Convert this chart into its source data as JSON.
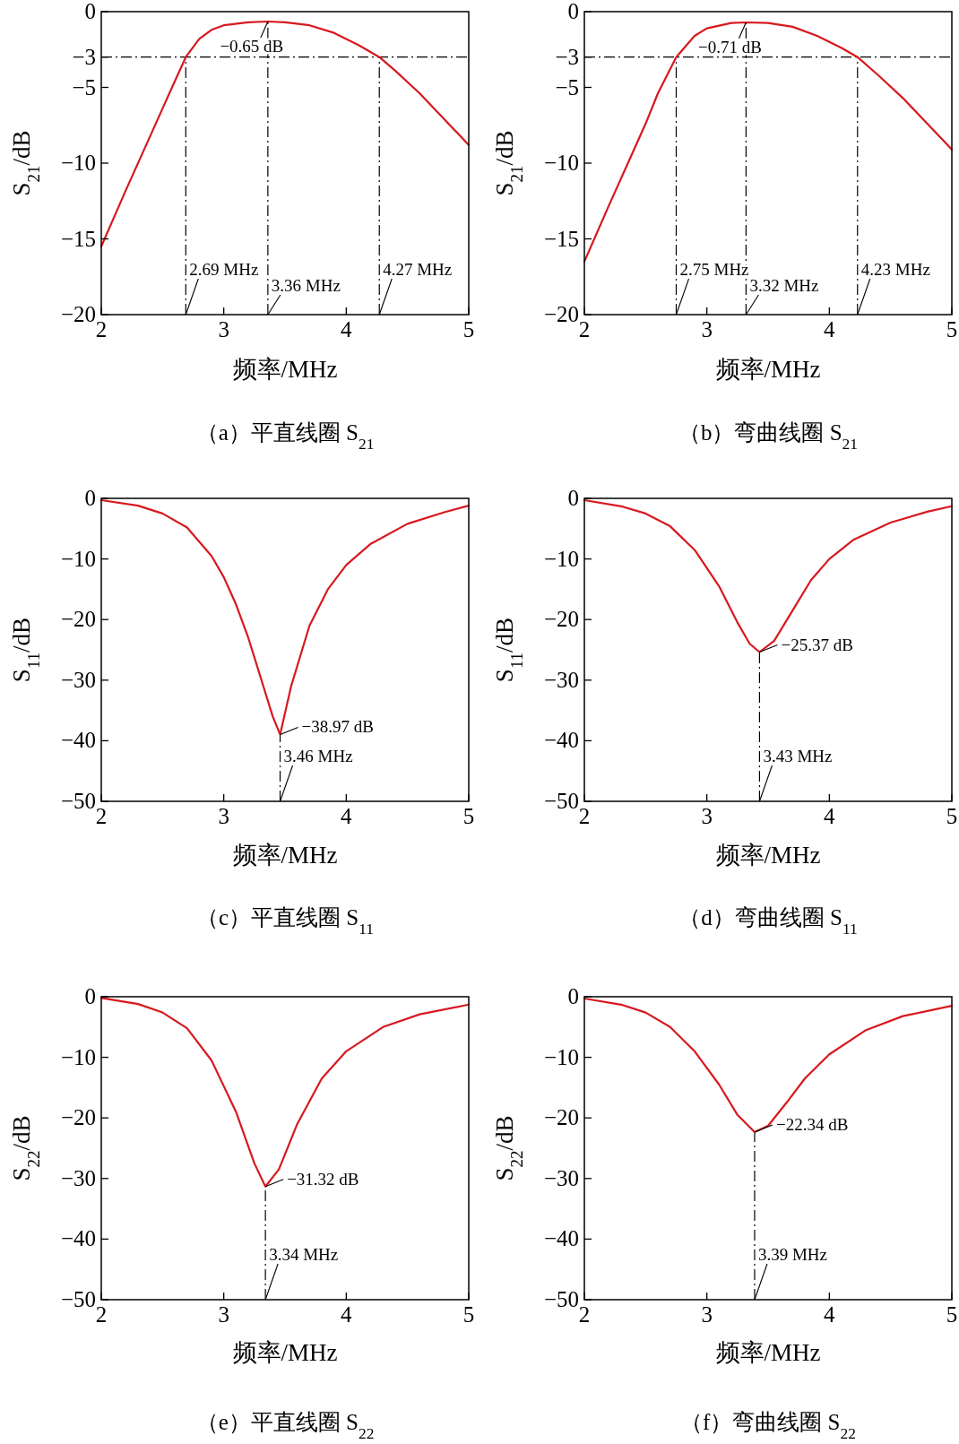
{
  "chart_data": [
    {
      "type": "line",
      "title": "（a）平直线圈 S$_{21}$",
      "xlabel": "频率/MHz",
      "ylabel": "S$_{21}$/dB",
      "xlim": [
        2,
        5
      ],
      "ylim": [
        -20,
        0
      ],
      "xticks": [
        2,
        3,
        4,
        5
      ],
      "yticks": [
        0,
        -3,
        -5,
        -10,
        -15,
        -20
      ],
      "x": [
        2,
        2.2,
        2.4,
        2.5,
        2.6,
        2.69,
        2.8,
        2.9,
        3.0,
        3.2,
        3.36,
        3.5,
        3.7,
        3.9,
        4.1,
        4.27,
        4.4,
        4.6,
        4.8,
        5
      ],
      "series": [
        {
          "color": "#d7191f",
          "values": [
            -15.5,
            -11.8,
            -8.2,
            -6.4,
            -4.6,
            -3.0,
            -1.8,
            -1.2,
            -0.9,
            -0.7,
            -0.65,
            -0.7,
            -0.9,
            -1.4,
            -2.2,
            -3.0,
            -3.9,
            -5.4,
            -7.1,
            -8.8
          ]
        }
      ],
      "ref_lines": [
        {
          "axis": "y",
          "value": -3,
          "line_style": "dashdot"
        },
        {
          "axis": "x",
          "value": 2.69,
          "line_style": "dashdot"
        },
        {
          "axis": "x",
          "value": 3.36,
          "line_style": "dashdot"
        },
        {
          "axis": "x",
          "value": 4.27,
          "line_style": "dashdot"
        }
      ],
      "annotations": [
        {
          "text": "−0.65 dB",
          "x": 3.36,
          "y": -0.65
        },
        {
          "text": "2.69 MHz",
          "x": 2.69,
          "y": -20
        },
        {
          "text": "3.36 MHz",
          "x": 3.36,
          "y": -20
        },
        {
          "text": "4.27 MHz",
          "x": 4.27,
          "y": -20
        }
      ]
    },
    {
      "type": "line",
      "title": "（b）弯曲线圈 S$_{21}$",
      "xlabel": "频率/MHz",
      "ylabel": "S$_{21}$/dB",
      "xlim": [
        2,
        5
      ],
      "ylim": [
        -20,
        0
      ],
      "xticks": [
        2,
        3,
        4,
        5
      ],
      "yticks": [
        0,
        -3,
        -5,
        -10,
        -15,
        -20
      ],
      "x": [
        2,
        2.2,
        2.4,
        2.5,
        2.6,
        2.75,
        2.9,
        3.0,
        3.2,
        3.32,
        3.5,
        3.7,
        3.9,
        4.1,
        4.23,
        4.4,
        4.6,
        4.8,
        5
      ],
      "series": [
        {
          "color": "#d7191f",
          "values": [
            -16.5,
            -12.8,
            -9.2,
            -7.4,
            -5.4,
            -3.0,
            -1.6,
            -1.1,
            -0.75,
            -0.71,
            -0.75,
            -1.0,
            -1.6,
            -2.4,
            -3.0,
            -4.2,
            -5.7,
            -7.4,
            -9.1
          ]
        }
      ],
      "ref_lines": [
        {
          "axis": "y",
          "value": -3,
          "line_style": "dashdot"
        },
        {
          "axis": "x",
          "value": 2.75,
          "line_style": "dashdot"
        },
        {
          "axis": "x",
          "value": 3.32,
          "line_style": "dashdot"
        },
        {
          "axis": "x",
          "value": 4.23,
          "line_style": "dashdot"
        }
      ],
      "annotations": [
        {
          "text": "−0.71 dB",
          "x": 3.32,
          "y": -0.71
        },
        {
          "text": "2.75 MHz",
          "x": 2.75,
          "y": -20
        },
        {
          "text": "3.32 MHz",
          "x": 3.32,
          "y": -20
        },
        {
          "text": "4.23 MHz",
          "x": 4.23,
          "y": -20
        }
      ]
    },
    {
      "type": "line",
      "title": "（c）平直线圈 S$_{11}$",
      "xlabel": "频率/MHz",
      "ylabel": "S$_{11}$/dB",
      "xlim": [
        2,
        5
      ],
      "ylim": [
        -50,
        0
      ],
      "xticks": [
        2,
        3,
        4,
        5
      ],
      "yticks": [
        0,
        -10,
        -20,
        -30,
        -40,
        -50
      ],
      "x": [
        2,
        2.3,
        2.5,
        2.7,
        2.9,
        3.0,
        3.1,
        3.2,
        3.3,
        3.4,
        3.46,
        3.55,
        3.7,
        3.85,
        4.0,
        4.2,
        4.5,
        4.8,
        5
      ],
      "series": [
        {
          "color": "#d7191f",
          "values": [
            -0.3,
            -1.2,
            -2.5,
            -4.8,
            -9.5,
            -13,
            -17.5,
            -23,
            -29.5,
            -36,
            -38.97,
            -31,
            -21,
            -15,
            -11,
            -7.5,
            -4.2,
            -2.3,
            -1.2
          ]
        }
      ],
      "ref_lines": [
        {
          "axis": "x",
          "value": 3.46,
          "line_style": "dashdot"
        }
      ],
      "annotations": [
        {
          "text": "−38.97 dB",
          "x": 3.46,
          "y": -38.97
        },
        {
          "text": "3.46 MHz",
          "x": 3.46,
          "y": -50
        }
      ]
    },
    {
      "type": "line",
      "title": "（d）弯曲线圈 S$_{11}$",
      "xlabel": "频率/MHz",
      "ylabel": "S$_{11}$/dB",
      "xlim": [
        2,
        5
      ],
      "ylim": [
        -50,
        0
      ],
      "xticks": [
        2,
        3,
        4,
        5
      ],
      "yticks": [
        0,
        -10,
        -20,
        -30,
        -40,
        -50
      ],
      "x": [
        2,
        2.3,
        2.5,
        2.7,
        2.9,
        3.1,
        3.25,
        3.35,
        3.43,
        3.55,
        3.7,
        3.85,
        4.0,
        4.2,
        4.5,
        4.8,
        5
      ],
      "series": [
        {
          "color": "#d7191f",
          "values": [
            -0.3,
            -1.3,
            -2.5,
            -4.6,
            -8.5,
            -14.5,
            -20.5,
            -24,
            -25.37,
            -23.5,
            -18.5,
            -13.5,
            -10,
            -6.8,
            -4,
            -2.2,
            -1.3
          ]
        }
      ],
      "ref_lines": [
        {
          "axis": "x",
          "value": 3.43,
          "line_style": "dashdot"
        }
      ],
      "annotations": [
        {
          "text": "−25.37 dB",
          "x": 3.43,
          "y": -25.37
        },
        {
          "text": "3.43 MHz",
          "x": 3.43,
          "y": -50
        }
      ]
    },
    {
      "type": "line",
      "title": "（e）平直线圈 S$_{22}$",
      "xlabel": "频率/MHz",
      "ylabel": "S$_{22}$/dB",
      "xlim": [
        2,
        5
      ],
      "ylim": [
        -50,
        0
      ],
      "xticks": [
        2,
        3,
        4,
        5
      ],
      "yticks": [
        0,
        -10,
        -20,
        -30,
        -40,
        -50
      ],
      "x": [
        2,
        2.3,
        2.5,
        2.7,
        2.9,
        3.1,
        3.25,
        3.34,
        3.45,
        3.6,
        3.8,
        4.0,
        4.3,
        4.6,
        5
      ],
      "series": [
        {
          "color": "#d7191f",
          "values": [
            -0.2,
            -1.2,
            -2.6,
            -5.2,
            -10.5,
            -19,
            -27.5,
            -31.32,
            -28.5,
            -21,
            -13.5,
            -9,
            -5,
            -2.9,
            -1.3
          ]
        }
      ],
      "ref_lines": [
        {
          "axis": "x",
          "value": 3.34,
          "line_style": "dashdot"
        }
      ],
      "annotations": [
        {
          "text": "−31.32 dB",
          "x": 3.34,
          "y": -31.32
        },
        {
          "text": "3.34 MHz",
          "x": 3.34,
          "y": -50
        }
      ]
    },
    {
      "type": "line",
      "title": "（f）弯曲线圈 S$_{22}$",
      "xlabel": "频率/MHz",
      "ylabel": "S$_{22}$/dB",
      "xlim": [
        2,
        5
      ],
      "ylim": [
        -50,
        0
      ],
      "xticks": [
        2,
        3,
        4,
        5
      ],
      "yticks": [
        0,
        -10,
        -20,
        -30,
        -40,
        -50
      ],
      "x": [
        2,
        2.3,
        2.5,
        2.7,
        2.9,
        3.1,
        3.25,
        3.39,
        3.5,
        3.65,
        3.8,
        4.0,
        4.3,
        4.6,
        5
      ],
      "series": [
        {
          "color": "#d7191f",
          "values": [
            -0.3,
            -1.3,
            -2.6,
            -5,
            -9,
            -14.5,
            -19.5,
            -22.34,
            -21.3,
            -17.5,
            -13.5,
            -9.5,
            -5.5,
            -3.2,
            -1.5
          ]
        }
      ],
      "ref_lines": [
        {
          "axis": "x",
          "value": 3.39,
          "line_style": "dashdot"
        }
      ],
      "annotations": [
        {
          "text": "−22.34 dB",
          "x": 3.39,
          "y": -22.34
        },
        {
          "text": "3.39 MHz",
          "x": 3.39,
          "y": -50
        }
      ]
    }
  ]
}
